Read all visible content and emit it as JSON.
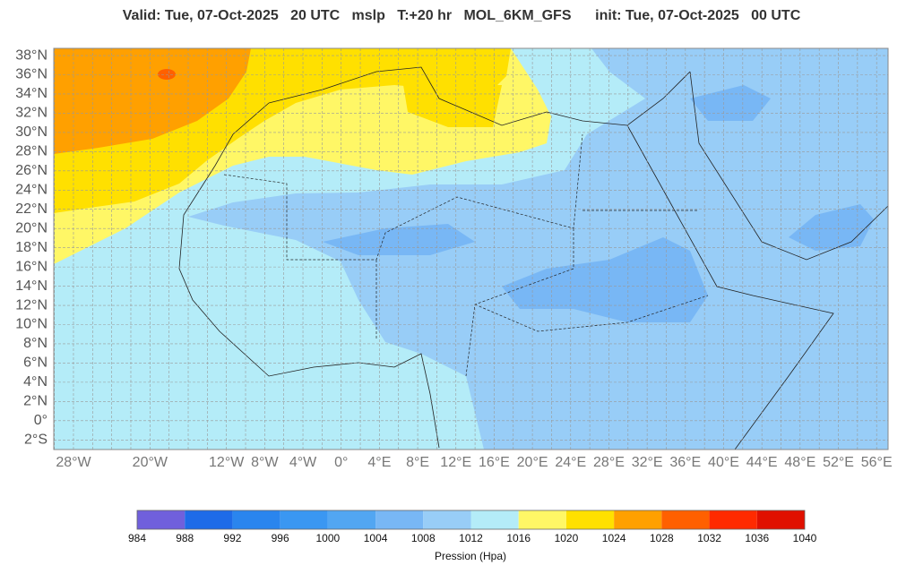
{
  "title": "Valid: Tue, 07-Oct-2025   20 UTC   mslp   T:+20 hr   MOL_6KM_GFS      init: Tue, 07-Oct-2025   00 UTC",
  "map": {
    "lon_range": [
      -30.06,
      57.2
    ],
    "lat_range": [
      -3.0,
      38.75
    ],
    "grid_step": 2,
    "lat_ticks": [
      {
        "value": 38,
        "label": "38°N"
      },
      {
        "value": 36,
        "label": "36°N"
      },
      {
        "value": 34,
        "label": "34°N"
      },
      {
        "value": 32,
        "label": "32°N"
      },
      {
        "value": 30,
        "label": "30°N"
      },
      {
        "value": 28,
        "label": "28°N"
      },
      {
        "value": 26,
        "label": "26°N"
      },
      {
        "value": 24,
        "label": "24°N"
      },
      {
        "value": 22,
        "label": "22°N"
      },
      {
        "value": 20,
        "label": "20°N"
      },
      {
        "value": 18,
        "label": "18°N"
      },
      {
        "value": 16,
        "label": "16°N"
      },
      {
        "value": 14,
        "label": "14°N"
      },
      {
        "value": 12,
        "label": "12°N"
      },
      {
        "value": 10,
        "label": "10°N"
      },
      {
        "value": 8,
        "label": "8°N"
      },
      {
        "value": 6,
        "label": "6°N"
      },
      {
        "value": 4,
        "label": "4°N"
      },
      {
        "value": 2,
        "label": "2°N"
      },
      {
        "value": 0,
        "label": "0°"
      },
      {
        "value": -2,
        "label": "2°S"
      }
    ],
    "lon_ticks": [
      {
        "value": -28,
        "label": "28°W"
      },
      {
        "value": -20,
        "label": "20°W"
      },
      {
        "value": -12,
        "label": "12°W"
      },
      {
        "value": -8,
        "label": "8°W"
      },
      {
        "value": -4,
        "label": "4°W"
      },
      {
        "value": 0,
        "label": "0°"
      },
      {
        "value": 4,
        "label": "4°E"
      },
      {
        "value": 8,
        "label": "8°E"
      },
      {
        "value": 12,
        "label": "12°E"
      },
      {
        "value": 16,
        "label": "16°E"
      },
      {
        "value": 20,
        "label": "20°E"
      },
      {
        "value": 24,
        "label": "24°E"
      },
      {
        "value": 28,
        "label": "28°E"
      },
      {
        "value": 32,
        "label": "32°E"
      },
      {
        "value": 36,
        "label": "36°E"
      },
      {
        "value": 40,
        "label": "40°E"
      },
      {
        "value": 44,
        "label": "44°E"
      },
      {
        "value": 48,
        "label": "48°E"
      },
      {
        "value": 52,
        "label": "52°E"
      },
      {
        "value": 56,
        "label": "56°E"
      }
    ]
  },
  "colorbar": {
    "ticks": [
      984,
      988,
      992,
      996,
      1000,
      1004,
      1008,
      1012,
      1016,
      1020,
      1024,
      1028,
      1032,
      1036,
      1040
    ],
    "colors": [
      "#7060dc",
      "#1e6be8",
      "#2a85ee",
      "#3a97f2",
      "#52a6f2",
      "#78b7f5",
      "#98cdf7",
      "#b4ecf8",
      "#fff766",
      "#ffe000",
      "#ffa000",
      "#ff6000",
      "#ff2a00",
      "#e01000"
    ],
    "label": "Pression (Hpa)"
  }
}
